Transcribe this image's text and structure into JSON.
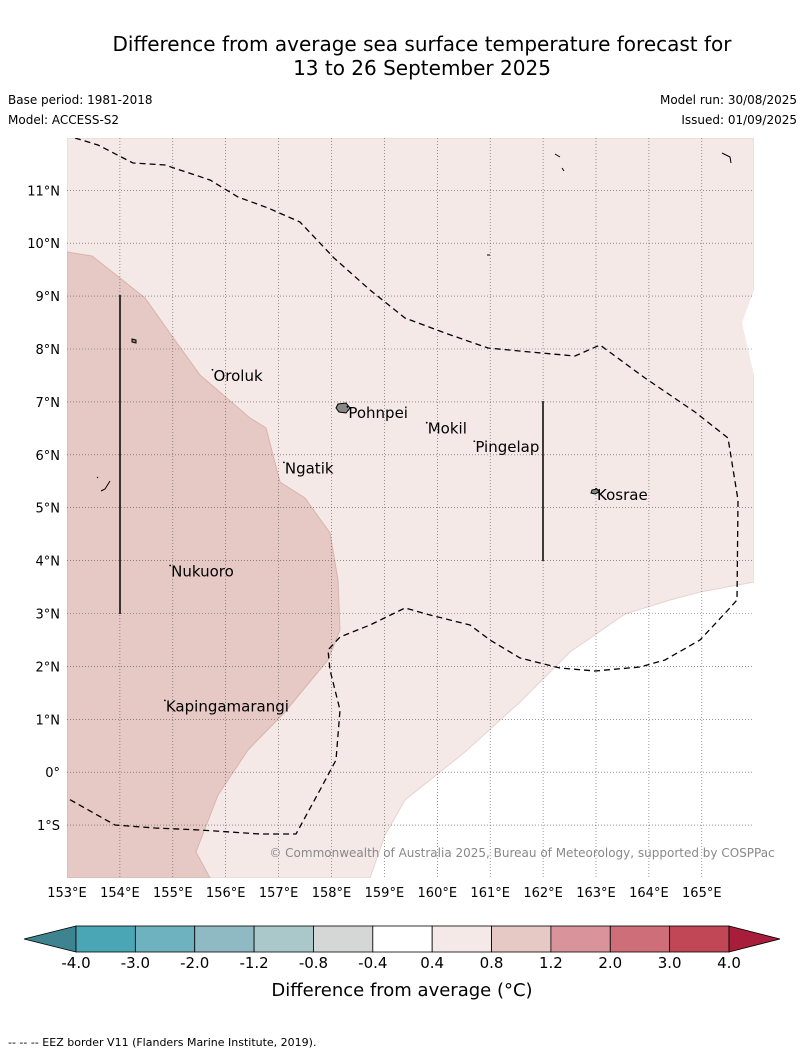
{
  "title": {
    "line1": "Difference from average sea surface temperature forecast for",
    "line2": "13 to 26 September 2025"
  },
  "meta": {
    "base_period": "Base period: 1981-2018",
    "model": "Model: ACCESS-S2",
    "model_run": "Model run: 30/08/2025",
    "issued": "Issued: 01/09/2025"
  },
  "map": {
    "lon_range": [
      153,
      166
    ],
    "lat_range": [
      -2,
      12
    ],
    "lon_ticks": [
      "153°E",
      "154°E",
      "155°E",
      "156°E",
      "157°E",
      "158°E",
      "159°E",
      "160°E",
      "161°E",
      "162°E",
      "163°E",
      "164°E",
      "165°E"
    ],
    "lat_ticks": [
      "11°N",
      "10°N",
      "9°N",
      "8°N",
      "7°N",
      "6°N",
      "5°N",
      "4°N",
      "3°N",
      "2°N",
      "1°N",
      "0°",
      "1°S"
    ],
    "places": [
      {
        "name": "Oroluk",
        "lon": 155.75,
        "lat": 7.55
      },
      {
        "name": "Pohnpei",
        "lon": 158.3,
        "lat": 6.85
      },
      {
        "name": "Mokil",
        "lon": 159.8,
        "lat": 6.55
      },
      {
        "name": "Pingelap",
        "lon": 160.7,
        "lat": 6.2
      },
      {
        "name": "Ngatik",
        "lon": 157.1,
        "lat": 5.8
      },
      {
        "name": "Kosrae",
        "lon": 163.0,
        "lat": 5.3
      },
      {
        "name": "Nukuoro",
        "lon": 154.95,
        "lat": 3.85
      },
      {
        "name": "Kapingamarangi",
        "lon": 154.85,
        "lat": 1.3
      }
    ],
    "copyright": "© Commonwealth of Australia 2025, Bureau of Meteorology, supported by COSPPac",
    "colors": {
      "anomaly_0_4_to_0_8": "#f5e9e8",
      "anomaly_0_8_to_1_2": "#e6c9c4",
      "grid": "#555555",
      "eez": "#000000"
    }
  },
  "colorbar": {
    "title": "Difference from average (°C)",
    "tick_labels": [
      "-4.0",
      "-3.0",
      "-2.0",
      "-1.2",
      "-0.8",
      "-0.4",
      "0.4",
      "0.8",
      "1.2",
      "2.0",
      "3.0",
      "4.0"
    ],
    "bin_colors": [
      "#4aa5b5",
      "#6eb2bf",
      "#8fbac4",
      "#aac8ca",
      "#d4d7d6",
      "#ffffff",
      "#f5e9e8",
      "#e6c9c4",
      "#d8949a",
      "#cd6e79",
      "#c24756"
    ],
    "under_color": "#3e8490",
    "over_color": "#a81d3a"
  },
  "footnote": "--  --  -- EEZ border V11 (Flanders Marine Institute, 2019)."
}
